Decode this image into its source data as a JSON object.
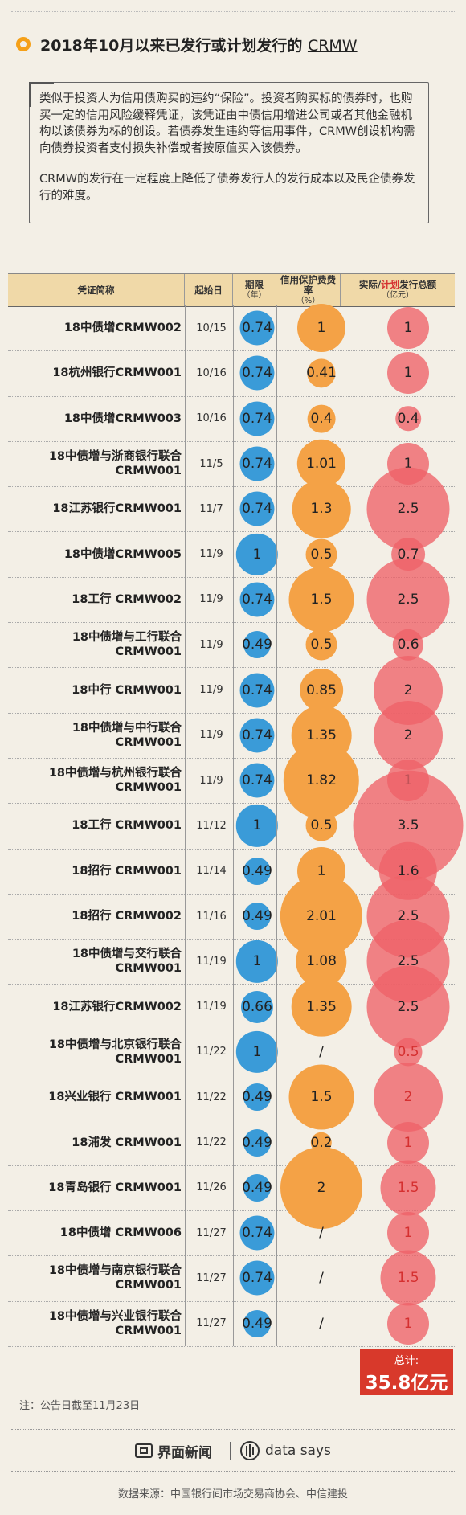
{
  "title": {
    "prefix": "2018年10月以来已发行或计划发行的 ",
    "acronym": "CRMW"
  },
  "intro": {
    "p1": "类似于投资人为信用债购买的违约“保险”。投资者购买标的债券时，也购买一定的信用风险缓释凭证，该凭证由中债信用增进公司或者其他金融机构以该债券为标的创设。若债券发生违约等信用事件，CRMW创设机构需向债券投资者支付损失补偿或者按原值买入该债券。",
    "p2": "CRMW的发行在一定程度上降低了债券发行人的发行成本以及民企债券发行的难度。"
  },
  "headers": {
    "name": "凭证简称",
    "date": "起始日",
    "term": "期限",
    "term_unit": "（年）",
    "fee": "信用保护费费率",
    "fee_unit": "（%）",
    "amount_a": "实际/",
    "amount_b": "计划",
    "amount_c": "发行总额",
    "amount_unit": "（亿元）"
  },
  "chart_data": {
    "type": "table",
    "columns": [
      "凭证简称",
      "起始日",
      "期限（年）",
      "信用保护费费率（%）",
      "实际/计划发行总额（亿元）"
    ],
    "rows": [
      {
        "name": "18中债增CRMW002",
        "date": "10/15",
        "term": "0.74",
        "fee": "1",
        "amount": "1",
        "planned": false
      },
      {
        "name": "18杭州银行CRMW001",
        "date": "10/16",
        "term": "0.74",
        "fee": "0.41",
        "amount": "1",
        "planned": false
      },
      {
        "name": "18中债增CRMW003",
        "date": "10/16",
        "term": "0.74",
        "fee": "0.4",
        "amount": "0.4",
        "planned": false
      },
      {
        "name": "18中债增与浙商银行联合\nCRMW001",
        "date": "11/5",
        "term": "0.74",
        "fee": "1.01",
        "amount": "1",
        "planned": false
      },
      {
        "name": "18江苏银行CRMW001",
        "date": "11/7",
        "term": "0.74",
        "fee": "1.3",
        "amount": "2.5",
        "planned": false
      },
      {
        "name": "18中债增CRMW005",
        "date": "11/9",
        "term": "1",
        "fee": "0.5",
        "amount": "0.7",
        "planned": false
      },
      {
        "name": "18工行 CRMW002",
        "date": "11/9",
        "term": "0.74",
        "fee": "1.5",
        "amount": "2.5",
        "planned": false
      },
      {
        "name": "18中债增与工行联合 CRMW001",
        "date": "11/9",
        "term": "0.49",
        "fee": "0.5",
        "amount": "0.6",
        "planned": false
      },
      {
        "name": "18中行 CRMW001",
        "date": "11/9",
        "term": "0.74",
        "fee": "0.85",
        "amount": "2",
        "planned": false
      },
      {
        "name": "18中债增与中行联合 CRMW001",
        "date": "11/9",
        "term": "0.74",
        "fee": "1.35",
        "amount": "2",
        "planned": false
      },
      {
        "name": "18中债增与杭州银行联合\nCRMW001",
        "date": "11/9",
        "term": "0.74",
        "fee": "1.82",
        "amount": "1",
        "planned": false
      },
      {
        "name": "18工行 CRMW001",
        "date": "11/12",
        "term": "1",
        "fee": "0.5",
        "amount": "3.5",
        "planned": false
      },
      {
        "name": "18招行 CRMW001",
        "date": "11/14",
        "term": "0.49",
        "fee": "1",
        "amount": "1.6",
        "planned": false
      },
      {
        "name": "18招行 CRMW002",
        "date": "11/16",
        "term": "0.49",
        "fee": "2.01",
        "amount": "2.5",
        "planned": false
      },
      {
        "name": "18中债增与交行联合 CRMW001",
        "date": "11/19",
        "term": "1",
        "fee": "1.08",
        "amount": "2.5",
        "planned": false
      },
      {
        "name": "18江苏银行CRMW002",
        "date": "11/19",
        "term": "0.66",
        "fee": "1.35",
        "amount": "2.5",
        "planned": false
      },
      {
        "name": "18中债增与北京银行联合\nCRMW001",
        "date": "11/22",
        "term": "1",
        "fee": "/",
        "amount": "0.5",
        "planned": true
      },
      {
        "name": "18兴业银行 CRMW001",
        "date": "11/22",
        "term": "0.49",
        "fee": "1.5",
        "amount": "2",
        "planned": true
      },
      {
        "name": "18浦发 CRMW001",
        "date": "11/22",
        "term": "0.49",
        "fee": "0.2",
        "amount": "1",
        "planned": true
      },
      {
        "name": "18青岛银行 CRMW001",
        "date": "11/26",
        "term": "0.49",
        "fee": "2",
        "amount": "1.5",
        "planned": true
      },
      {
        "name": "18中债增 CRMW006",
        "date": "11/27",
        "term": "0.74",
        "fee": "/",
        "amount": "1",
        "planned": true
      },
      {
        "name": "18中债增与南京银行联合\nCRMW001",
        "date": "11/27",
        "term": "0.74",
        "fee": "/",
        "amount": "1.5",
        "planned": true
      },
      {
        "name": "18中债增与兴业银行联合\nCRMW001",
        "date": "11/27",
        "term": "0.49",
        "fee": "/",
        "amount": "1",
        "planned": true
      }
    ]
  },
  "colors": {
    "term": "#3a9bd8",
    "fee": "#f4a246",
    "amount": "#ee6268",
    "planned_text": "#d53030"
  },
  "total": {
    "label": "总计:",
    "value": "35.8亿元"
  },
  "note": "注：公告日截至11月23日",
  "brand1": "界面新闻",
  "brand2": "data says",
  "source": "数据来源：中国银行间市场交易商协会、中信建投"
}
